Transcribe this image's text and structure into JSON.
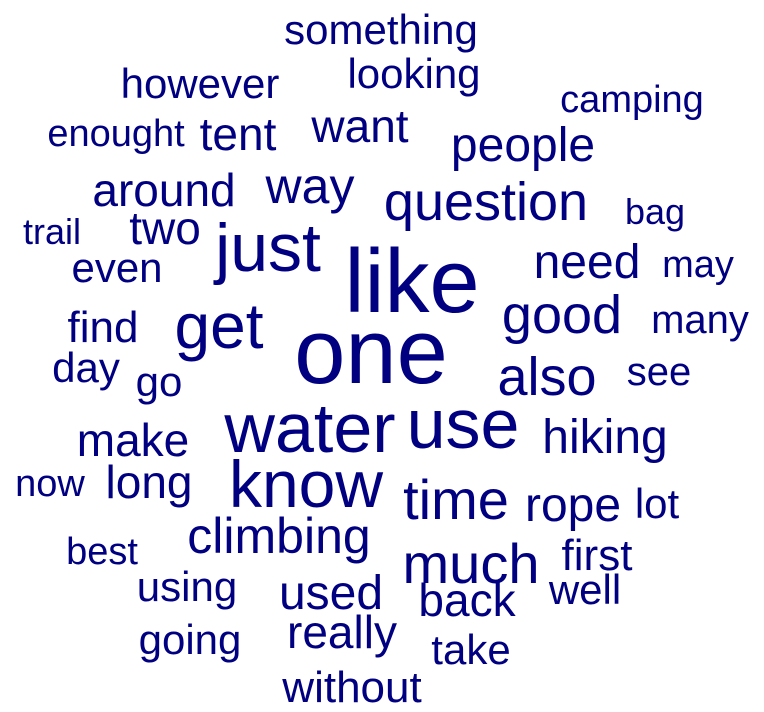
{
  "word_cloud": {
    "color": "#000080",
    "words": [
      "something",
      "looking",
      "however",
      "camping",
      "enought",
      "tent",
      "want",
      "people",
      "around",
      "way",
      "question",
      "bag",
      "trail",
      "two",
      "just",
      "like",
      "even",
      "need",
      "may",
      "find",
      "get",
      "good",
      "many",
      "one",
      "day",
      "go",
      "also",
      "see",
      "water",
      "use",
      "make",
      "hiking",
      "now",
      "long",
      "know",
      "time",
      "lot",
      "rope",
      "climbing",
      "best",
      "much",
      "first",
      "using",
      "used",
      "well",
      "back",
      "going",
      "really",
      "take",
      "without"
    ]
  }
}
